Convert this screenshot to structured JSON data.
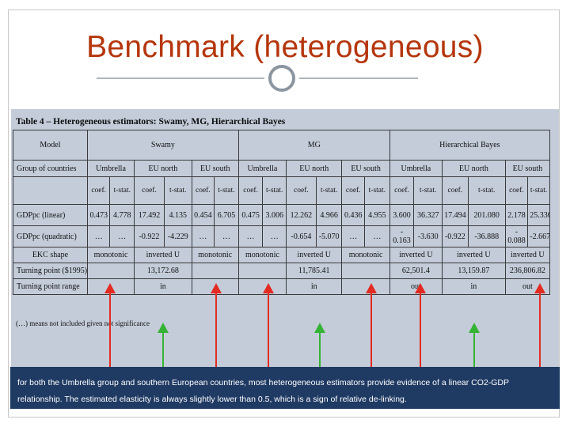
{
  "slide": {
    "title": "Benchmark (heterogeneous)"
  },
  "table": {
    "caption": "Table 4 – Heterogeneous estimators: Swamy, MG, Hierarchical Bayes",
    "header_model": "Model",
    "estimators": [
      "Swamy",
      "MG",
      "Hierarchical Bayes"
    ],
    "group_label": "Group of countries",
    "groups": [
      "Umbrella",
      "EU north",
      "EU south",
      "Umbrella",
      "EU north",
      "EU south",
      "Umbrella",
      "EU north",
      "EU south"
    ],
    "stat_headers": [
      "coef.",
      "t-stat.",
      "coef.",
      "t-stat.",
      "coef.",
      "t-stat.",
      "coef.",
      "t-stat.",
      "coef.",
      "t-stat.",
      "coef.",
      "t-stat.",
      "coef.",
      "t-stat.",
      "coef.",
      "t-stat.",
      "coef.",
      "t-stat."
    ],
    "rows": {
      "gdp_linear": {
        "label": "GDPpc (linear)",
        "values": [
          "0.473",
          "4.778",
          "17.492",
          "4.135",
          "0.454",
          "6.705",
          "0.475",
          "3.006",
          "12.262",
          "4.966",
          "0.436",
          "4.955",
          "3.600",
          "36.327",
          "17.494",
          "201.080",
          "2.178",
          "25.336"
        ]
      },
      "gdp_quadratic": {
        "label": "GDPpc (quadratic)",
        "values": [
          "…",
          "…",
          "-0.922",
          "-4.229",
          "…",
          "…",
          "…",
          "…",
          "-0.654",
          "-5.070",
          "…",
          "…",
          "-\n0.163",
          "-3.630",
          "-0.922",
          "-36.888",
          "-\n0.088",
          "-2.667"
        ]
      },
      "ekc_shape": {
        "label": "EKC shape",
        "values": [
          "monotonic",
          "inverted U",
          "monotonic",
          "monotonic",
          "inverted U",
          "monotonic",
          "inverted U",
          "inverted U",
          "inverted U"
        ]
      },
      "turning_point": {
        "label": "Turning point ($1995)",
        "values": [
          "13,172.68",
          "11,785.41",
          "62,501.4",
          "13,159.87",
          "236,806.82"
        ]
      },
      "turning_range": {
        "label": "Turning point range",
        "values": [
          "in",
          "in",
          "out",
          "in",
          "out"
        ]
      }
    },
    "footnote": "(…) means not included given not significance"
  },
  "arrows": [
    {
      "color": "red"
    },
    {
      "color": "green"
    },
    {
      "color": "red"
    },
    {
      "color": "red"
    },
    {
      "color": "green"
    },
    {
      "color": "red"
    },
    {
      "color": "red"
    },
    {
      "color": "green"
    },
    {
      "color": "red"
    }
  ],
  "colors": {
    "title": "#b5360c",
    "bottom_band": "#1f3a63",
    "arrow_red": "#e32b22",
    "arrow_green": "#35b335"
  },
  "summary": {
    "line1": "for both the Umbrella group and southern European countries, most heterogeneous estimators provide evidence of a linear CO2-GDP",
    "line2": "relationship. The estimated elasticity is always slightly lower than 0.5, which is a sign of relative de-linking."
  }
}
